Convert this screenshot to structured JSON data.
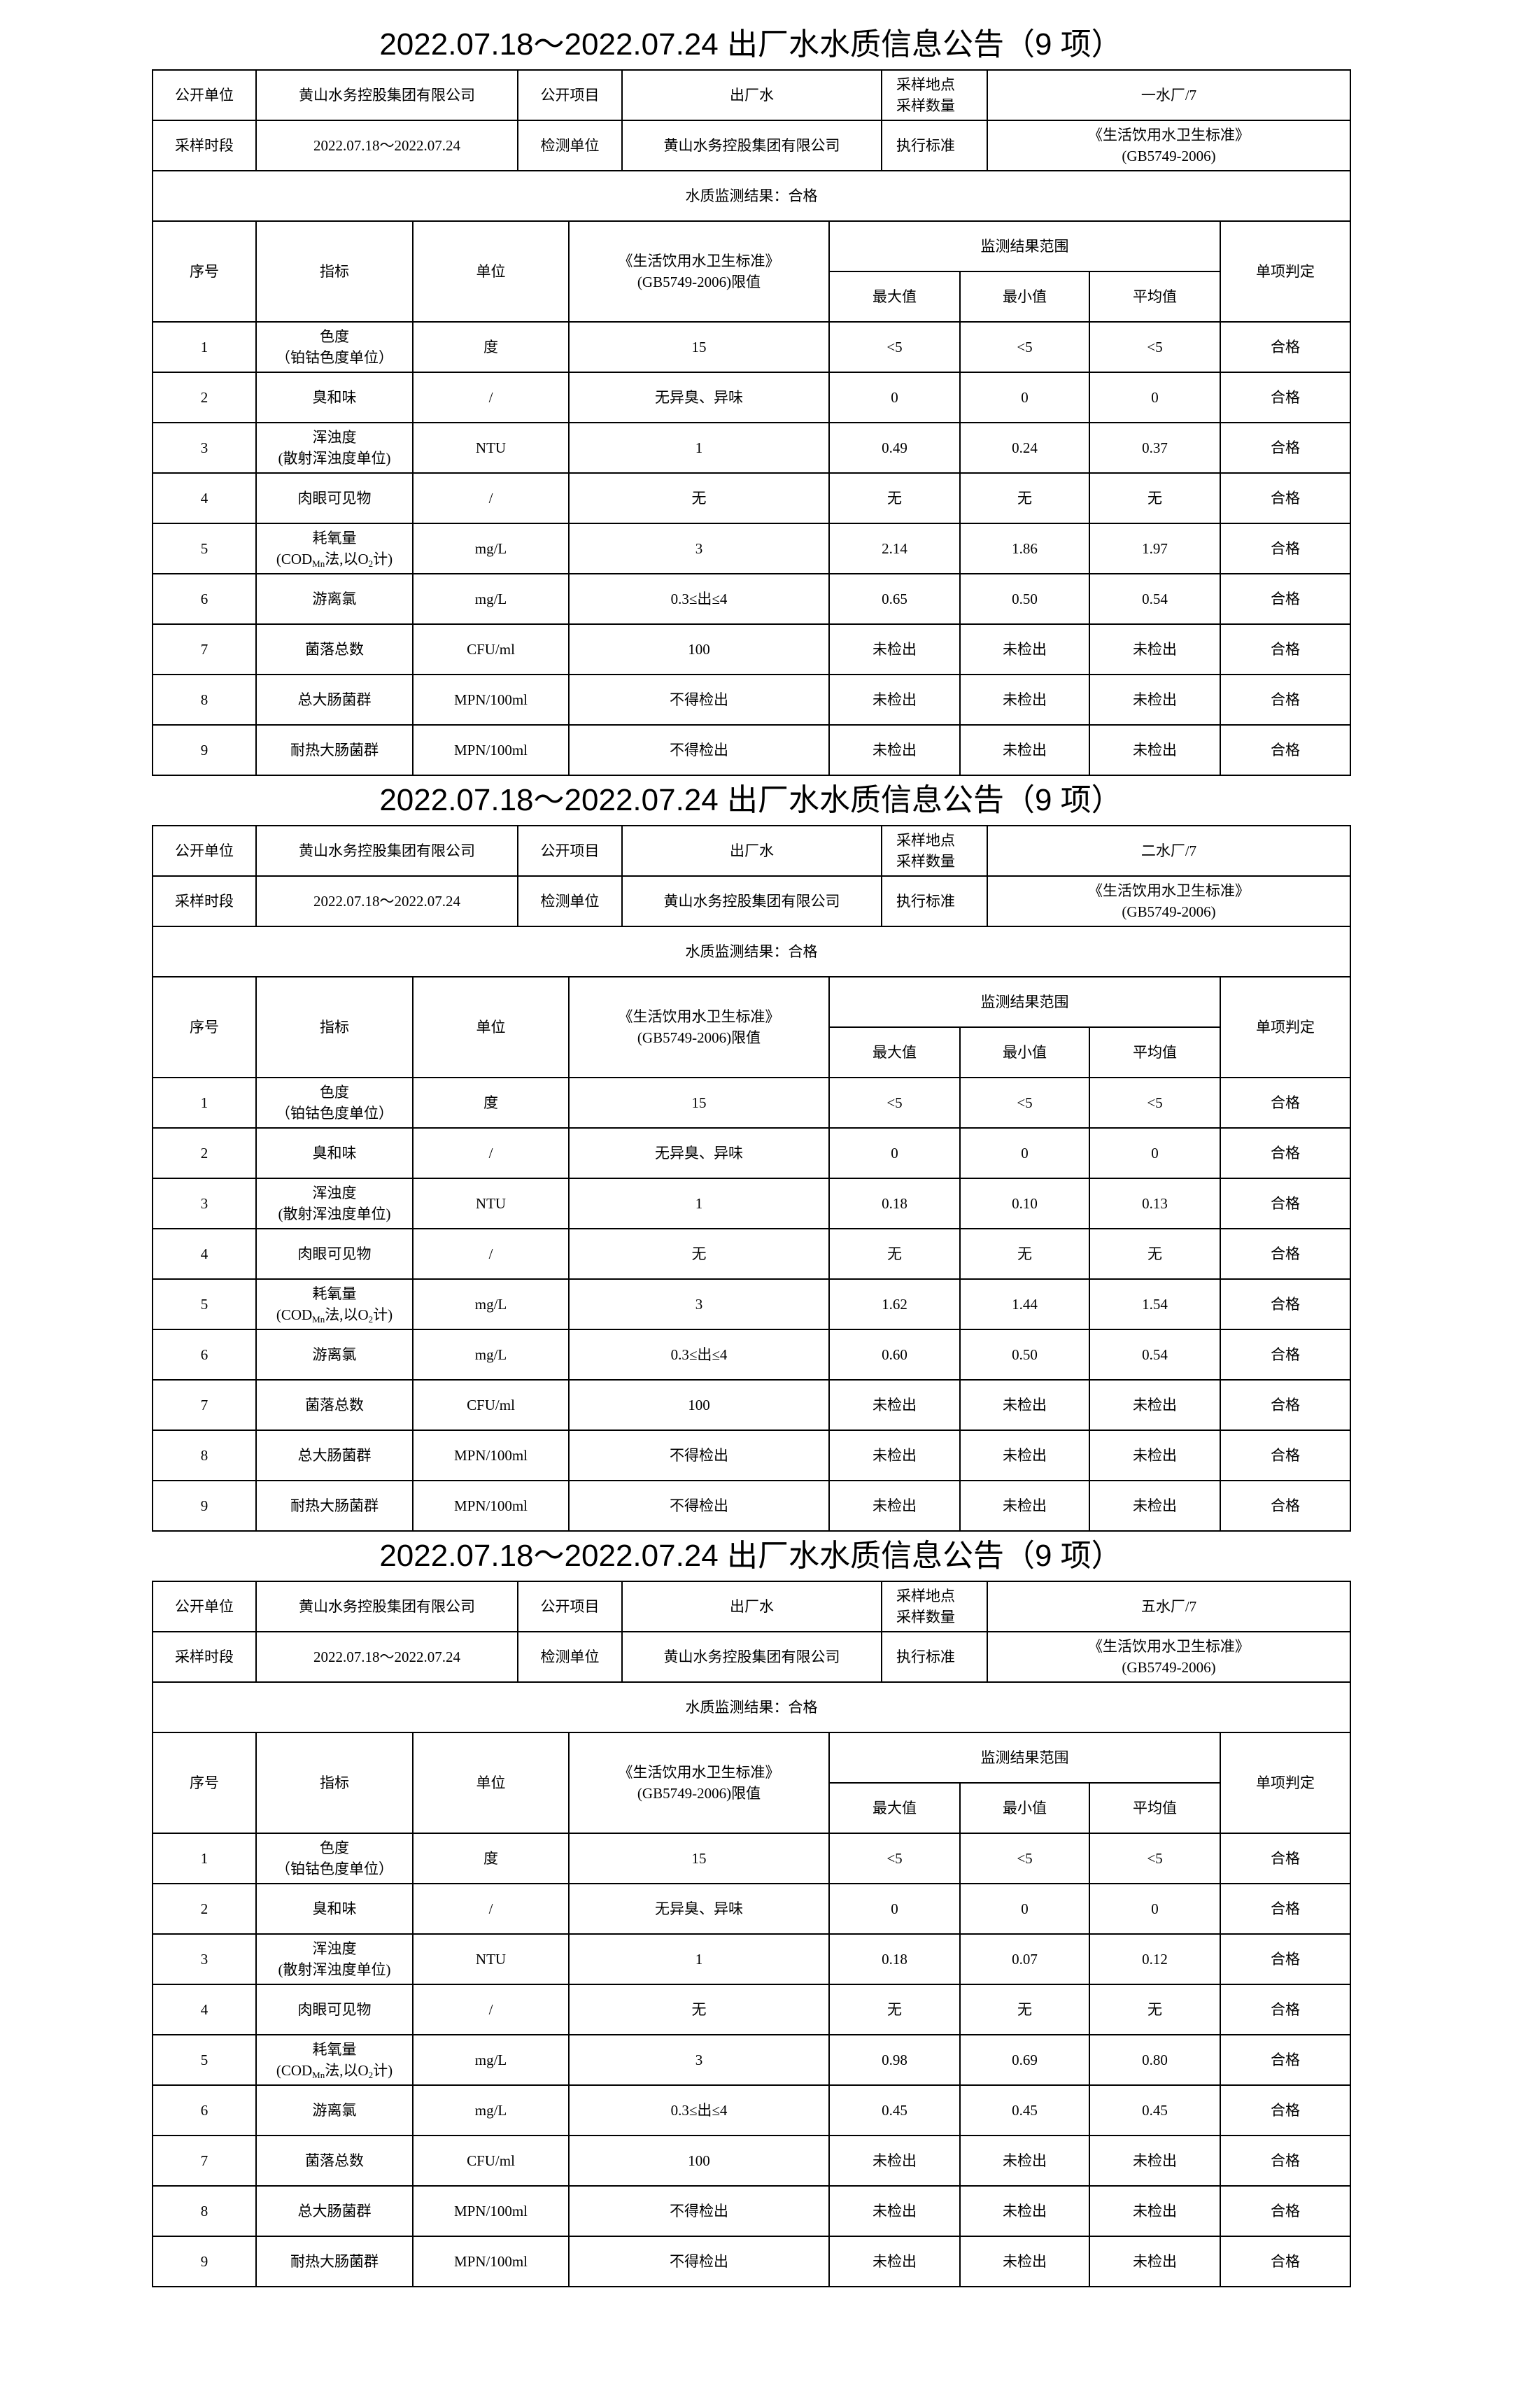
{
  "blocks": [
    {
      "title": "2022.07.18～2022.07.24 出厂水水质信息公告（9 项）",
      "info": {
        "pub_unit_label": "公开单位",
        "pub_unit": "黄山水务控股集团有限公司",
        "pub_item_label": "公开项目",
        "pub_item": "出厂水",
        "site_label_1": "采样地点",
        "site_label_2": "采样数量",
        "site_value": "一水厂/7",
        "period_label": "采样时段",
        "period": "2022.07.18～2022.07.24",
        "test_unit_label": "检测单位",
        "test_unit": "黄山水务控股集团有限公司",
        "standard_label": "执行标准",
        "standard_1": "《生活饮用水卫生标准》",
        "standard_2": "(GB5749-2006)"
      },
      "result": "水质监测结果：合格",
      "rows": [
        {
          "no": "1",
          "name": [
            "色度",
            "（铂钴色度单位）"
          ],
          "unit": "度",
          "limit": "15",
          "max": "<5",
          "min": "<5",
          "avg": "<5",
          "judge": "合格"
        },
        {
          "no": "2",
          "name": [
            "臭和味"
          ],
          "unit": "/",
          "limit": "无异臭、异味",
          "max": "0",
          "min": "0",
          "avg": "0",
          "judge": "合格"
        },
        {
          "no": "3",
          "name": [
            "浑浊度",
            "(散射浑浊度单位)"
          ],
          "unit": "NTU",
          "limit": "1",
          "max": "0.49",
          "min": "0.24",
          "avg": "0.37",
          "judge": "合格"
        },
        {
          "no": "4",
          "name": [
            "肉眼可见物"
          ],
          "unit": "/",
          "limit": "无",
          "max": "无",
          "min": "无",
          "avg": "无",
          "judge": "合格"
        },
        {
          "no": "5",
          "name": [
            "耗氧量",
            "cod"
          ],
          "unit": "mg/L",
          "limit": "3",
          "max": "2.14",
          "min": "1.86",
          "avg": "1.97",
          "judge": "合格"
        },
        {
          "no": "6",
          "name": [
            "游离氯"
          ],
          "unit": "mg/L",
          "limit": "0.3≤出≤4",
          "max": "0.65",
          "min": "0.50",
          "avg": "0.54",
          "judge": "合格"
        },
        {
          "no": "7",
          "name": [
            "菌落总数"
          ],
          "unit": "CFU/ml",
          "limit": "100",
          "max": "未检出",
          "min": "未检出",
          "avg": "未检出",
          "judge": "合格"
        },
        {
          "no": "8",
          "name": [
            "总大肠菌群"
          ],
          "unit": "MPN/100ml",
          "limit": "不得检出",
          "max": "未检出",
          "min": "未检出",
          "avg": "未检出",
          "judge": "合格"
        },
        {
          "no": "9",
          "name": [
            "耐热大肠菌群"
          ],
          "unit": "MPN/100ml",
          "limit": "不得检出",
          "max": "未检出",
          "min": "未检出",
          "avg": "未检出",
          "judge": "合格"
        }
      ]
    },
    {
      "title": "2022.07.18～2022.07.24 出厂水水质信息公告（9 项）",
      "info": {
        "pub_unit_label": "公开单位",
        "pub_unit": "黄山水务控股集团有限公司",
        "pub_item_label": "公开项目",
        "pub_item": "出厂水",
        "site_label_1": "采样地点",
        "site_label_2": "采样数量",
        "site_value": "二水厂/7",
        "period_label": "采样时段",
        "period": "2022.07.18～2022.07.24",
        "test_unit_label": "检测单位",
        "test_unit": "黄山水务控股集团有限公司",
        "standard_label": "执行标准",
        "standard_1": "《生活饮用水卫生标准》",
        "standard_2": "(GB5749-2006)"
      },
      "result": "水质监测结果：合格",
      "rows": [
        {
          "no": "1",
          "name": [
            "色度",
            "（铂钴色度单位）"
          ],
          "unit": "度",
          "limit": "15",
          "max": "<5",
          "min": "<5",
          "avg": "<5",
          "judge": "合格"
        },
        {
          "no": "2",
          "name": [
            "臭和味"
          ],
          "unit": "/",
          "limit": "无异臭、异味",
          "max": "0",
          "min": "0",
          "avg": "0",
          "judge": "合格"
        },
        {
          "no": "3",
          "name": [
            "浑浊度",
            "(散射浑浊度单位)"
          ],
          "unit": "NTU",
          "limit": "1",
          "max": "0.18",
          "min": "0.10",
          "avg": "0.13",
          "judge": "合格"
        },
        {
          "no": "4",
          "name": [
            "肉眼可见物"
          ],
          "unit": "/",
          "limit": "无",
          "max": "无",
          "min": "无",
          "avg": "无",
          "judge": "合格"
        },
        {
          "no": "5",
          "name": [
            "耗氧量",
            "cod"
          ],
          "unit": "mg/L",
          "limit": "3",
          "max": "1.62",
          "min": "1.44",
          "avg": "1.54",
          "judge": "合格"
        },
        {
          "no": "6",
          "name": [
            "游离氯"
          ],
          "unit": "mg/L",
          "limit": "0.3≤出≤4",
          "max": "0.60",
          "min": "0.50",
          "avg": "0.54",
          "judge": "合格"
        },
        {
          "no": "7",
          "name": [
            "菌落总数"
          ],
          "unit": "CFU/ml",
          "limit": "100",
          "max": "未检出",
          "min": "未检出",
          "avg": "未检出",
          "judge": "合格"
        },
        {
          "no": "8",
          "name": [
            "总大肠菌群"
          ],
          "unit": "MPN/100ml",
          "limit": "不得检出",
          "max": "未检出",
          "min": "未检出",
          "avg": "未检出",
          "judge": "合格"
        },
        {
          "no": "9",
          "name": [
            "耐热大肠菌群"
          ],
          "unit": "MPN/100ml",
          "limit": "不得检出",
          "max": "未检出",
          "min": "未检出",
          "avg": "未检出",
          "judge": "合格"
        }
      ]
    },
    {
      "title": "2022.07.18～2022.07.24 出厂水水质信息公告（9 项）",
      "info": {
        "pub_unit_label": "公开单位",
        "pub_unit": "黄山水务控股集团有限公司",
        "pub_item_label": "公开项目",
        "pub_item": "出厂水",
        "site_label_1": "采样地点",
        "site_label_2": "采样数量",
        "site_value": "五水厂/7",
        "period_label": "采样时段",
        "period": "2022.07.18～2022.07.24",
        "test_unit_label": "检测单位",
        "test_unit": "黄山水务控股集团有限公司",
        "standard_label": "执行标准",
        "standard_1": "《生活饮用水卫生标准》",
        "standard_2": "(GB5749-2006)"
      },
      "result": "水质监测结果：合格",
      "rows": [
        {
          "no": "1",
          "name": [
            "色度",
            "（铂钴色度单位）"
          ],
          "unit": "度",
          "limit": "15",
          "max": "<5",
          "min": "<5",
          "avg": "<5",
          "judge": "合格"
        },
        {
          "no": "2",
          "name": [
            "臭和味"
          ],
          "unit": "/",
          "limit": "无异臭、异味",
          "max": "0",
          "min": "0",
          "avg": "0",
          "judge": "合格"
        },
        {
          "no": "3",
          "name": [
            "浑浊度",
            "(散射浑浊度单位)"
          ],
          "unit": "NTU",
          "limit": "1",
          "max": "0.18",
          "min": "0.07",
          "avg": "0.12",
          "judge": "合格"
        },
        {
          "no": "4",
          "name": [
            "肉眼可见物"
          ],
          "unit": "/",
          "limit": "无",
          "max": "无",
          "min": "无",
          "avg": "无",
          "judge": "合格"
        },
        {
          "no": "5",
          "name": [
            "耗氧量",
            "cod"
          ],
          "unit": "mg/L",
          "limit": "3",
          "max": "0.98",
          "min": "0.69",
          "avg": "0.80",
          "judge": "合格"
        },
        {
          "no": "6",
          "name": [
            "游离氯"
          ],
          "unit": "mg/L",
          "limit": "0.3≤出≤4",
          "max": "0.45",
          "min": "0.45",
          "avg": "0.45",
          "judge": "合格"
        },
        {
          "no": "7",
          "name": [
            "菌落总数"
          ],
          "unit": "CFU/ml",
          "limit": "100",
          "max": "未检出",
          "min": "未检出",
          "avg": "未检出",
          "judge": "合格"
        },
        {
          "no": "8",
          "name": [
            "总大肠菌群"
          ],
          "unit": "MPN/100ml",
          "limit": "不得检出",
          "max": "未检出",
          "min": "未检出",
          "avg": "未检出",
          "judge": "合格"
        },
        {
          "no": "9",
          "name": [
            "耐热大肠菌群"
          ],
          "unit": "MPN/100ml",
          "limit": "不得检出",
          "max": "未检出",
          "min": "未检出",
          "avg": "未检出",
          "judge": "合格"
        }
      ]
    }
  ],
  "header": {
    "no": "序号",
    "indicator": "指标",
    "unit": "单位",
    "limit_1": "《生活饮用水卫生标准》",
    "limit_2": "(GB5749-2006)限值",
    "range": "监测结果范围",
    "max": "最大值",
    "min": "最小值",
    "avg": "平均值",
    "judge": "单项判定"
  },
  "cod_parts": {
    "a": "(COD",
    "b": "Mn",
    "c": "法,以O",
    "d": "2",
    "e": "计)"
  }
}
